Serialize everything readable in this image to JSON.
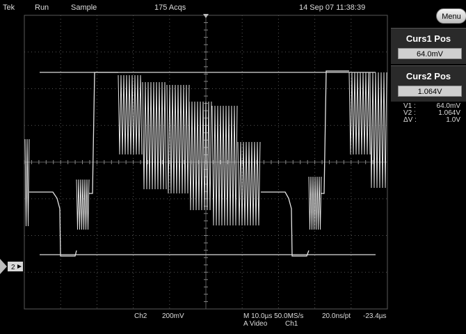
{
  "status_bar": {
    "brand": "Tek",
    "run_state": "Run",
    "acq_mode": "Sample",
    "acq_count": "175 Acqs",
    "timestamp": "14 Sep 07 11:38:39"
  },
  "menu_button": {
    "label": "Menu"
  },
  "cursor1": {
    "title": "Curs1 Pos",
    "value": "64.0mV"
  },
  "cursor2": {
    "title": "Curs2 Pos",
    "value": "1.064V"
  },
  "readout": [
    {
      "label": "V1 :",
      "value": "64.0mV"
    },
    {
      "label": "V2 :",
      "value": "1.064V"
    },
    {
      "label": "ΔV :",
      "value": "1.0V"
    }
  ],
  "channel_marker": {
    "label": "2"
  },
  "bottom_bar": {
    "channel": "Ch2",
    "volts_per_div": "200mV",
    "horizontal": "M 10.0µs 50.0MS/s",
    "sample_interval": "20.0ns/pt",
    "position": "-23.4µs",
    "trigger_type": "A  Video",
    "trigger_source": "Ch1"
  },
  "colors": {
    "background": "#000000",
    "graticule": "#5a5a5a",
    "trace": "#e6e6e6",
    "cursor_line": "#dcdcdc",
    "panel": "#2a2a2a"
  },
  "icons": {
    "trigger_marker": "down-triangle-icon",
    "channel_marker": "arrow-right-icon",
    "menu": "rounded-button"
  }
}
